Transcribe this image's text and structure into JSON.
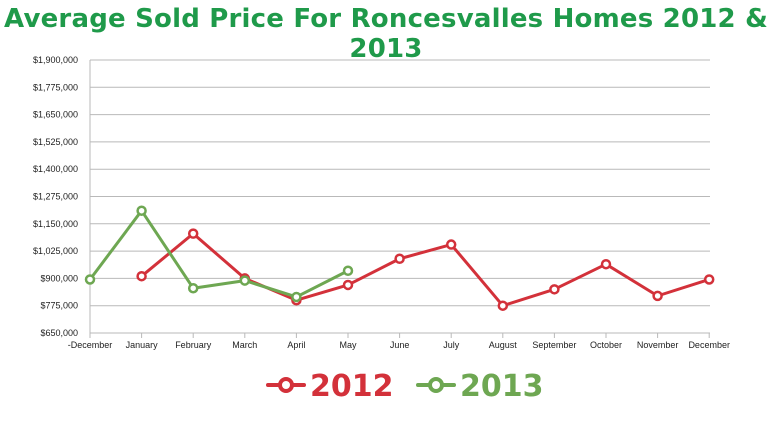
{
  "chart_data": {
    "type": "line",
    "title": "Average Sold Price For Roncesvalles Homes 2012 & 2013",
    "categories": [
      "-December",
      "January",
      "February",
      "March",
      "April",
      "May",
      "June",
      "July",
      "August",
      "September",
      "October",
      "November",
      "December"
    ],
    "y_ticks": [
      "$650,000",
      "$775,000",
      "$900,000",
      "$1,025,000",
      "$1,150,000",
      "$1,275,000",
      "$1,400,000",
      "$1,525,000",
      "$1,650,000",
      "$1,775,000",
      "$1,900,000"
    ],
    "ylim": [
      650000,
      1900000
    ],
    "y_step": 125000,
    "grid": true,
    "legend_position": "bottom",
    "series": [
      {
        "name": "2012",
        "color": "#d3313a",
        "values": [
          null,
          910000,
          1105000,
          900000,
          800000,
          870000,
          990000,
          1055000,
          775000,
          850000,
          965000,
          820000,
          895000
        ]
      },
      {
        "name": "2013",
        "color": "#6ea752",
        "values": [
          895000,
          1210000,
          855000,
          890000,
          815000,
          935000,
          null,
          null,
          null,
          null,
          null,
          null,
          null
        ]
      }
    ]
  }
}
